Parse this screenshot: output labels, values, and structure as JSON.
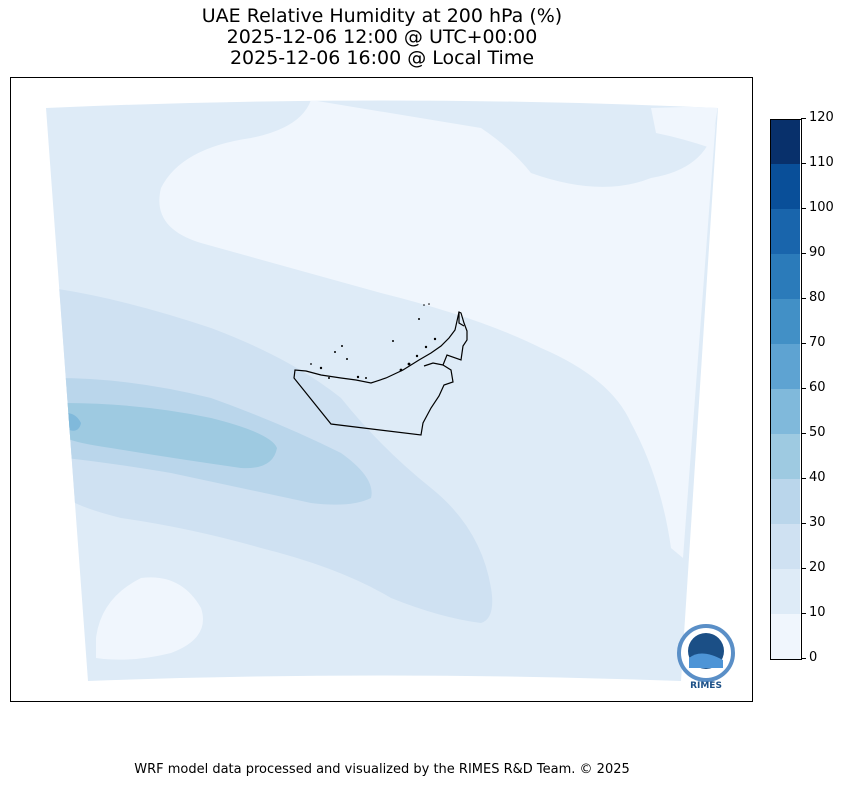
{
  "title": {
    "line1": "UAE Relative Humidity at 200 hPa (%)",
    "line2": "2025-12-06 12:00 @ UTC+00:00",
    "line3": "2025-12-06 16:00 @ Local Time"
  },
  "colorbar": {
    "ticks": [
      "0",
      "10",
      "20",
      "30",
      "40",
      "50",
      "60",
      "70",
      "80",
      "90",
      "100",
      "110",
      "120"
    ],
    "colors": [
      "#f0f6fd",
      "#deebf7",
      "#cfe1f2",
      "#bad6eb",
      "#9ecae1",
      "#80b9db",
      "#5ea3d2",
      "#4290c6",
      "#2b7bba",
      "#1965ac",
      "#094f99",
      "#08306b"
    ]
  },
  "logo": {
    "text": "RIMES"
  },
  "footer": "WRF model data processed and visualized by the RIMES R&D Team. © 2025"
}
